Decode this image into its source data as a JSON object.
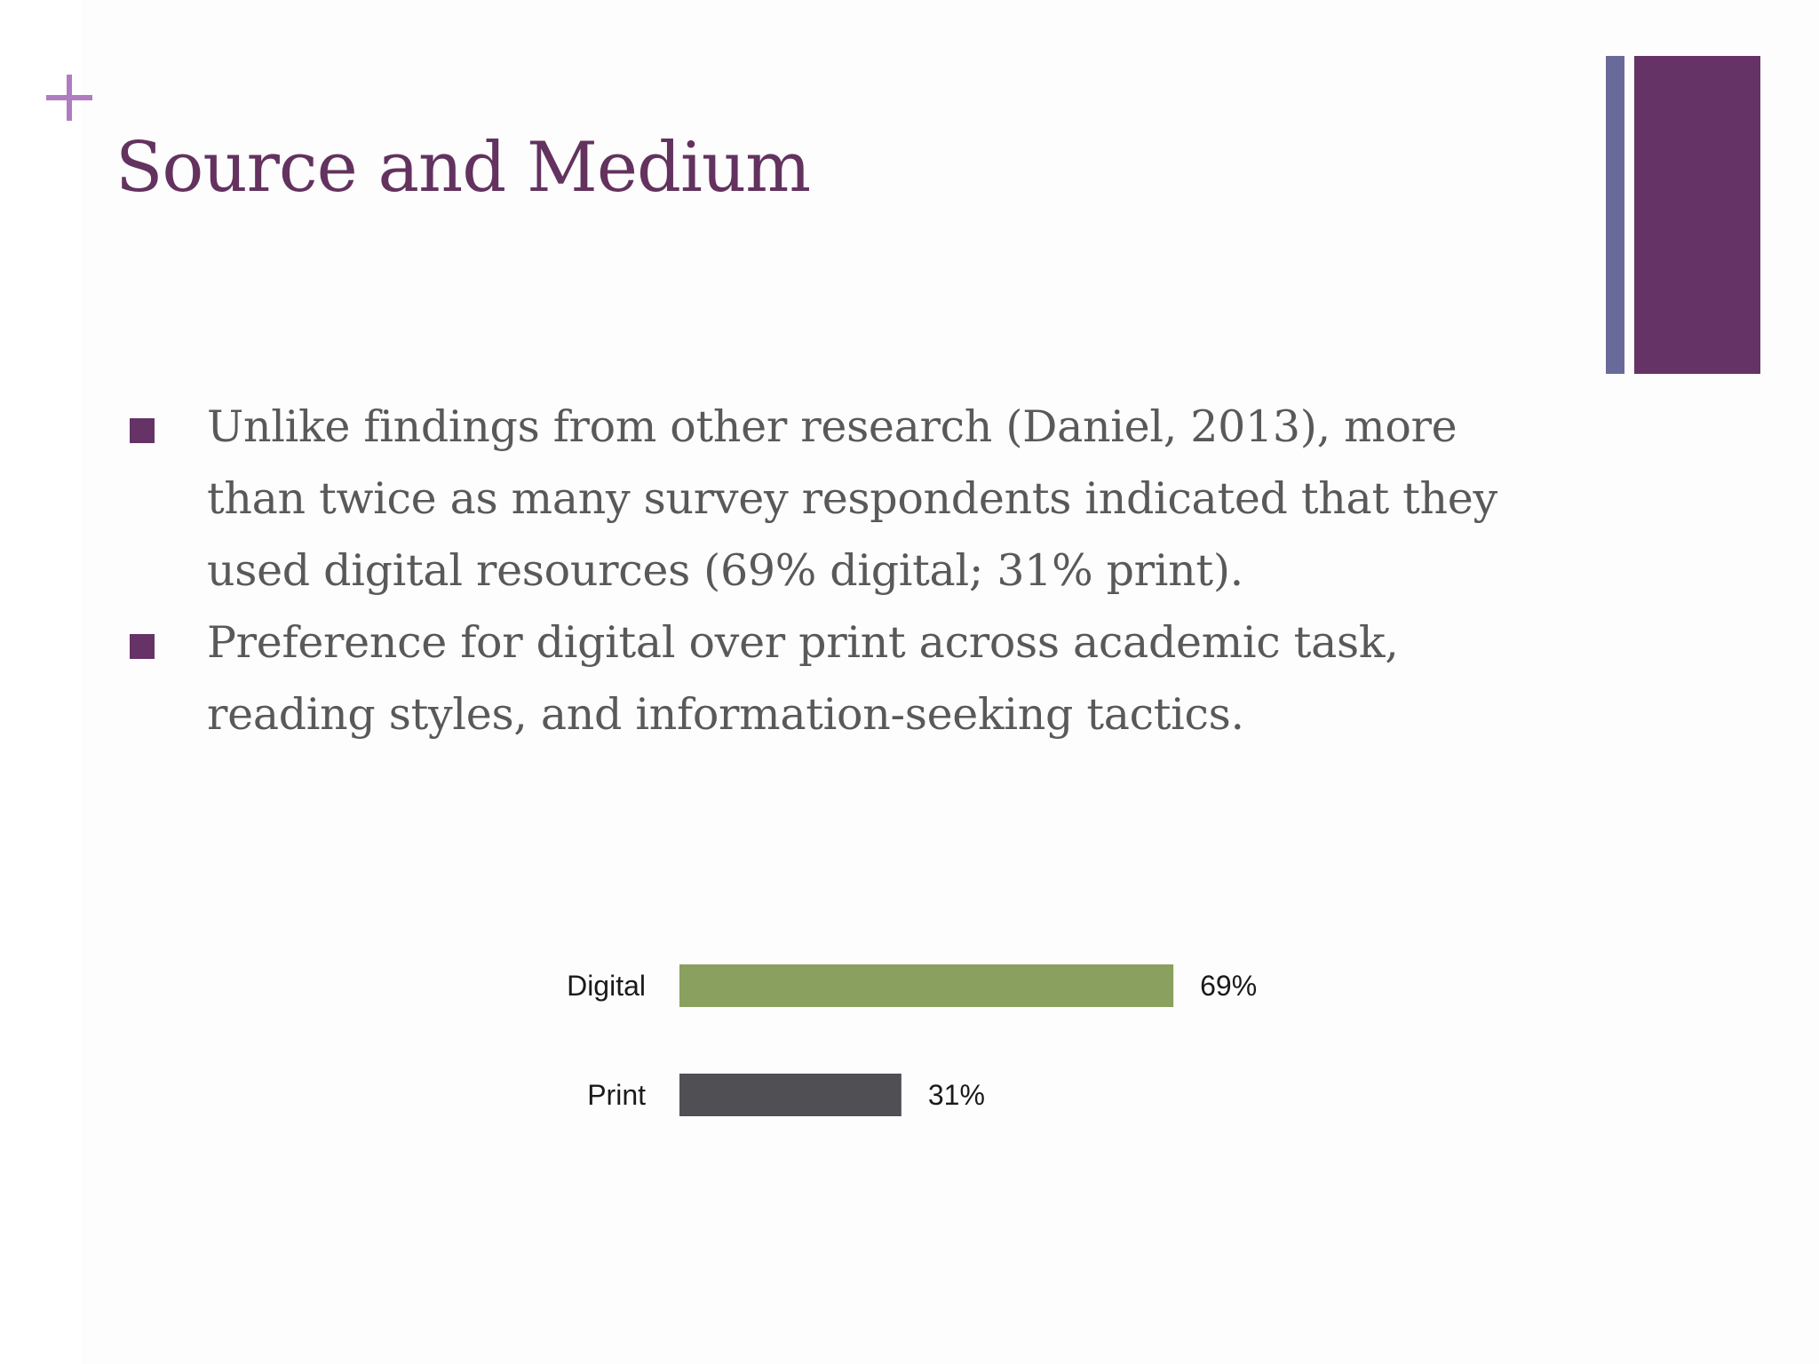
{
  "slide": {
    "marker_symbol": "+",
    "title": "Source and Medium",
    "colors": {
      "title": "#63325f",
      "accent": "#663366",
      "accent_secondary": "#6a6a9a",
      "marker_plus": "#b07cc0",
      "body_text": "#595959"
    },
    "bullets": [
      {
        "text": "Unlike findings from other research (Daniel, 2013), more than twice as many survey respondents indicated that they used digital resources (69% digital; 31% print)."
      },
      {
        "text": "Preference for digital over print across academic task, reading styles, and information-seeking tactics."
      }
    ]
  },
  "chart_data": {
    "type": "bar",
    "orientation": "horizontal",
    "categories": [
      "Digital",
      "Print"
    ],
    "values": [
      69,
      31
    ],
    "value_labels": [
      "69%",
      "31%"
    ],
    "bar_colors": [
      "#8aa05f",
      "#504f54"
    ],
    "xlim": [
      0,
      100
    ],
    "grid": false,
    "legend": "none"
  }
}
